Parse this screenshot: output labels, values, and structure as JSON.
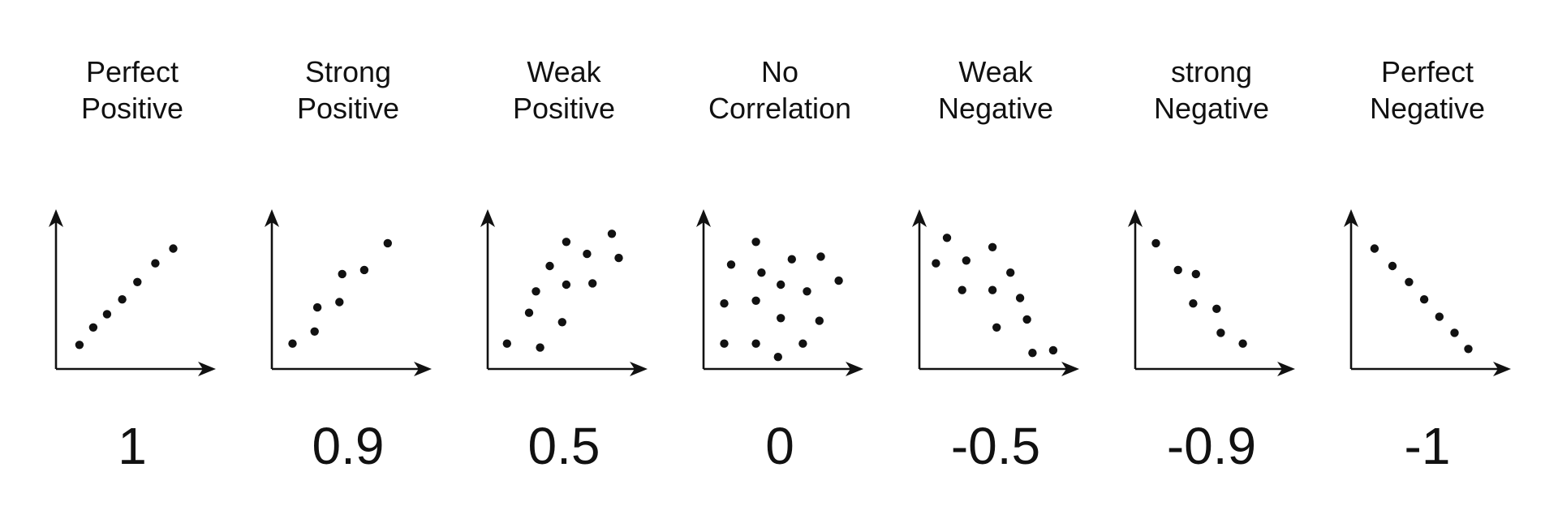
{
  "panels": [
    {
      "title_line1": "Perfect",
      "title_line2": "Positive",
      "value": "1",
      "points": [
        [
          0.17,
          0.18
        ],
        [
          0.27,
          0.31
        ],
        [
          0.37,
          0.41
        ],
        [
          0.48,
          0.52
        ],
        [
          0.59,
          0.65
        ],
        [
          0.72,
          0.79
        ],
        [
          0.85,
          0.9
        ]
      ]
    },
    {
      "title_line1": "Strong",
      "title_line2": "Positive",
      "value": "0.9",
      "points": [
        [
          0.15,
          0.19
        ],
        [
          0.31,
          0.28
        ],
        [
          0.33,
          0.46
        ],
        [
          0.49,
          0.5
        ],
        [
          0.51,
          0.71
        ],
        [
          0.67,
          0.74
        ],
        [
          0.84,
          0.94
        ]
      ]
    },
    {
      "title_line1": "Weak",
      "title_line2": "Positive",
      "value": "0.5",
      "points": [
        [
          0.14,
          0.19
        ],
        [
          0.3,
          0.42
        ],
        [
          0.35,
          0.58
        ],
        [
          0.38,
          0.16
        ],
        [
          0.45,
          0.77
        ],
        [
          0.54,
          0.35
        ],
        [
          0.57,
          0.63
        ],
        [
          0.57,
          0.95
        ],
        [
          0.72,
          0.86
        ],
        [
          0.76,
          0.64
        ],
        [
          0.9,
          1.01
        ],
        [
          0.95,
          0.83
        ]
      ]
    },
    {
      "title_line1": "No",
      "title_line2": "Correlation",
      "value": "0",
      "points": [
        [
          0.15,
          0.19
        ],
        [
          0.15,
          0.49
        ],
        [
          0.2,
          0.78
        ],
        [
          0.38,
          0.19
        ],
        [
          0.38,
          0.51
        ],
        [
          0.38,
          0.95
        ],
        [
          0.42,
          0.72
        ],
        [
          0.54,
          0.09
        ],
        [
          0.56,
          0.63
        ],
        [
          0.56,
          0.38
        ],
        [
          0.64,
          0.82
        ],
        [
          0.72,
          0.19
        ],
        [
          0.75,
          0.58
        ],
        [
          0.84,
          0.36
        ],
        [
          0.85,
          0.84
        ],
        [
          0.98,
          0.66
        ]
      ]
    },
    {
      "title_line1": "Weak",
      "title_line2": "Negative",
      "value": "-0.5",
      "points": [
        [
          0.12,
          0.79
        ],
        [
          0.2,
          0.98
        ],
        [
          0.31,
          0.59
        ],
        [
          0.34,
          0.81
        ],
        [
          0.53,
          0.59
        ],
        [
          0.53,
          0.91
        ],
        [
          0.56,
          0.31
        ],
        [
          0.66,
          0.72
        ],
        [
          0.73,
          0.53
        ],
        [
          0.78,
          0.37
        ],
        [
          0.82,
          0.12
        ],
        [
          0.97,
          0.14
        ]
      ]
    },
    {
      "title_line1": "strong",
      "title_line2": "Negative",
      "value": "-0.9",
      "points": [
        [
          0.15,
          0.94
        ],
        [
          0.31,
          0.74
        ],
        [
          0.42,
          0.49
        ],
        [
          0.44,
          0.71
        ],
        [
          0.59,
          0.45
        ],
        [
          0.62,
          0.27
        ],
        [
          0.78,
          0.19
        ]
      ]
    },
    {
      "title_line1": "Perfect",
      "title_line2": "Negative",
      "value": "-1",
      "points": [
        [
          0.17,
          0.9
        ],
        [
          0.3,
          0.77
        ],
        [
          0.42,
          0.65
        ],
        [
          0.53,
          0.52
        ],
        [
          0.64,
          0.39
        ],
        [
          0.75,
          0.27
        ],
        [
          0.85,
          0.15
        ]
      ]
    }
  ],
  "colors": {
    "ink": "#111111",
    "background": "#ffffff"
  }
}
